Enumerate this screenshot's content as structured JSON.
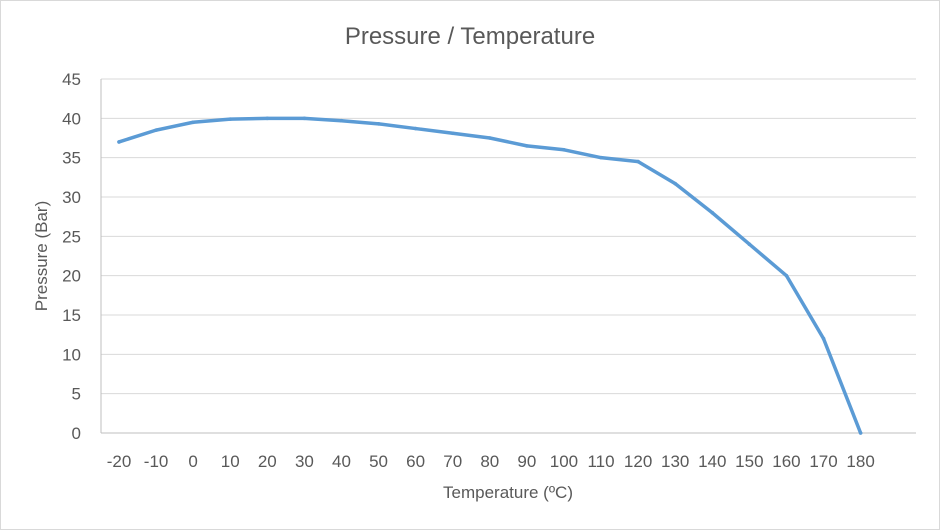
{
  "chart_data": {
    "type": "line",
    "title": "Pressure / Temperature",
    "xlabel": "Temperature (ºC)",
    "ylabel": "Pressure (Bar)",
    "categories": [
      "-20",
      "-10",
      "0",
      "10",
      "20",
      "30",
      "40",
      "50",
      "60",
      "70",
      "80",
      "90",
      "100",
      "110",
      "120",
      "130",
      "140",
      "150",
      "160",
      "170",
      "180"
    ],
    "series": [
      {
        "name": "",
        "values": [
          37,
          38.5,
          39.5,
          39.9,
          40,
          40,
          39.7,
          39.3,
          38.7,
          38.1,
          37.5,
          36.5,
          36,
          35,
          34.5,
          31.7,
          28,
          24,
          20,
          12,
          0
        ],
        "color": "#5b9bd5"
      }
    ],
    "y_ticks": [
      "0",
      "5",
      "10",
      "15",
      "20",
      "25",
      "30",
      "35",
      "40",
      "45"
    ],
    "ylim": [
      0,
      45
    ],
    "y_step": 5,
    "grid": true,
    "legend": "none",
    "colors": {
      "gridline": "#d9d9d9",
      "axis": "#bfbfbf",
      "text": "#595959"
    }
  }
}
